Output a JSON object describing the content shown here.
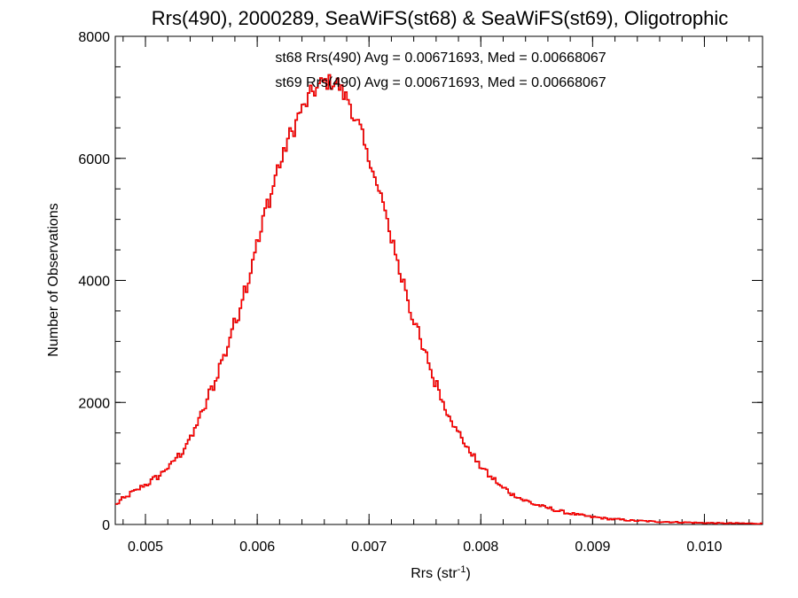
{
  "chart_data": {
    "type": "histogram",
    "title": "Rrs(490), 2000289, SeaWiFS(st68) & SeaWiFS(st69), Oligotrophic",
    "xlabel": "Rrs (str",
    "xlabel_sup": "-1",
    "xlabel_tail": ")",
    "ylabel": "Number of Observations",
    "xlim": [
      0.00473,
      0.01052
    ],
    "ylim": [
      0,
      8000
    ],
    "x_ticks": [
      0.005,
      0.006,
      0.007,
      0.008,
      0.009,
      0.01
    ],
    "x_tick_labels": [
      "0.005",
      "0.006",
      "0.007",
      "0.008",
      "0.009",
      "0.010"
    ],
    "y_ticks": [
      0,
      2000,
      4000,
      6000,
      8000
    ],
    "y_tick_labels": [
      "0",
      "2000",
      "4000",
      "6000",
      "8000"
    ],
    "x_minor_step": 0.0002,
    "y_minor_step": 500,
    "grid": false,
    "annotations": [
      {
        "text": "st68 Rrs(490) Avg = 0.00671693, Med = 0.00668067",
        "color": "#000000"
      },
      {
        "text": "st69 Rrs(490) Avg = 0.00671693, Med = 0.00668067",
        "color": "#ff0000"
      }
    ],
    "series": [
      {
        "label": "st68",
        "color": "#000000"
      },
      {
        "label": "st69",
        "color": "#ff0000"
      }
    ],
    "curve_points": [
      [
        0.00473,
        320
      ],
      [
        0.0048,
        420
      ],
      [
        0.0049,
        540
      ],
      [
        0.005,
        650
      ],
      [
        0.0051,
        770
      ],
      [
        0.0052,
        930
      ],
      [
        0.0053,
        1130
      ],
      [
        0.0054,
        1400
      ],
      [
        0.0055,
        1800
      ],
      [
        0.0056,
        2250
      ],
      [
        0.0057,
        2750
      ],
      [
        0.0058,
        3300
      ],
      [
        0.0059,
        3900
      ],
      [
        0.006,
        4600
      ],
      [
        0.0061,
        5300
      ],
      [
        0.0062,
        5900
      ],
      [
        0.0063,
        6400
      ],
      [
        0.0064,
        6800
      ],
      [
        0.0065,
        7100
      ],
      [
        0.0066,
        7250
      ],
      [
        0.0067,
        7250
      ],
      [
        0.0068,
        7000
      ],
      [
        0.0069,
        6550
      ],
      [
        0.007,
        6000
      ],
      [
        0.0071,
        5400
      ],
      [
        0.0072,
        4700
      ],
      [
        0.0073,
        4000
      ],
      [
        0.0074,
        3350
      ],
      [
        0.0075,
        2800
      ],
      [
        0.0076,
        2300
      ],
      [
        0.0077,
        1850
      ],
      [
        0.0078,
        1500
      ],
      [
        0.0079,
        1200
      ],
      [
        0.008,
        950
      ],
      [
        0.0081,
        760
      ],
      [
        0.0082,
        600
      ],
      [
        0.0083,
        480
      ],
      [
        0.0084,
        390
      ],
      [
        0.0085,
        320
      ],
      [
        0.0086,
        270
      ],
      [
        0.0087,
        220
      ],
      [
        0.0088,
        180
      ],
      [
        0.0089,
        150
      ],
      [
        0.009,
        120
      ],
      [
        0.0092,
        85
      ],
      [
        0.0094,
        60
      ],
      [
        0.0096,
        45
      ],
      [
        0.0098,
        35
      ],
      [
        0.01,
        25
      ],
      [
        0.0102,
        20
      ],
      [
        0.01052,
        15
      ]
    ],
    "bin_width": 1.85e-05
  }
}
